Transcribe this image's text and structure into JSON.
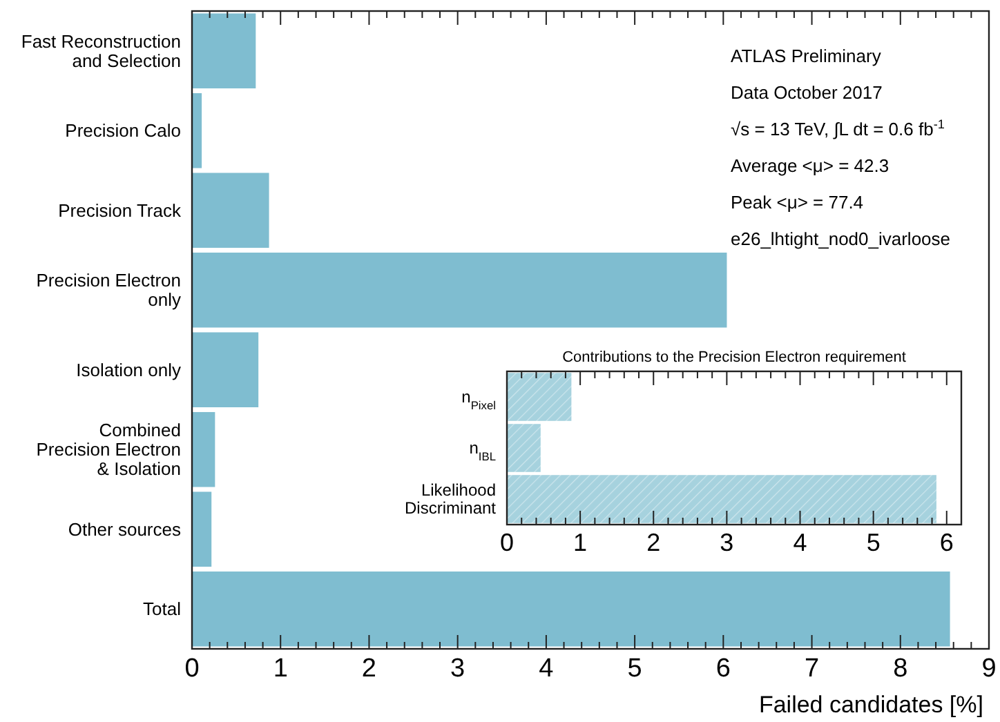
{
  "chart_data": [
    {
      "type": "bar",
      "orientation": "horizontal",
      "xlabel": "Failed candidates [%]",
      "categories": [
        "Fast Reconstruction\nand Selection",
        "Precision Calo",
        "Precision Track",
        "Precision Electron\nonly",
        "Isolation only",
        "Combined\nPrecision Electron\n& Isolation",
        "Other sources",
        "Total"
      ],
      "values": [
        0.72,
        0.11,
        0.87,
        6.04,
        0.75,
        0.26,
        0.22,
        8.56
      ],
      "color": "#7fbdd0",
      "xlim": [
        0,
        9
      ],
      "xticks": [
        0,
        {
          "value": 0.2,
          "label": null
        },
        {
          "value": 0.4,
          "label": null
        },
        {
          "value": 0.6,
          "label": null
        },
        {
          "value": 0.8,
          "label": null
        },
        1,
        {
          "value": 1.2,
          "label": null
        },
        {
          "value": 1.4,
          "label": null
        },
        {
          "value": 1.6,
          "label": null
        },
        {
          "value": 1.8,
          "label": null
        },
        2,
        {
          "value": 2.2,
          "label": null
        },
        {
          "value": 2.4,
          "label": null
        },
        {
          "value": 2.6,
          "label": null
        },
        {
          "value": 2.8,
          "label": null
        },
        3,
        {
          "value": 3.2,
          "label": null
        },
        {
          "value": 3.4,
          "label": null
        },
        {
          "value": 3.6,
          "label": null
        },
        {
          "value": 3.8,
          "label": null
        },
        4,
        {
          "value": 4.2,
          "label": null
        },
        {
          "value": 4.4,
          "label": null
        },
        {
          "value": 4.6,
          "label": null
        },
        {
          "value": 4.8,
          "label": null
        },
        5,
        {
          "value": 5.2,
          "label": null
        },
        {
          "value": 5.4,
          "label": null
        },
        {
          "value": 5.6,
          "label": null
        },
        {
          "value": 5.8,
          "label": null
        },
        6,
        {
          "value": 6.2,
          "label": null
        },
        {
          "value": 6.4,
          "label": null
        },
        {
          "value": 6.6,
          "label": null
        },
        {
          "value": 6.8,
          "label": null
        },
        7,
        {
          "value": 7.2,
          "label": null
        },
        {
          "value": 7.4,
          "label": null
        },
        {
          "value": 7.6,
          "label": null
        },
        {
          "value": 7.8,
          "label": null
        },
        8,
        {
          "value": 8.2,
          "label": null
        },
        {
          "value": 8.4,
          "label": null
        },
        {
          "value": 8.6,
          "label": null
        },
        {
          "value": 8.8,
          "label": null
        },
        9
      ],
      "annotations": [
        "ATLAS Preliminary",
        "Data October 2017",
        "√s = 13 TeV, ∫L dt = 0.6 fb$^{-1}$",
        "Average <μ> = 42.3",
        "Peak <μ> = 77.4",
        "e26_lhtight_nod0_ivarloose"
      ]
    },
    {
      "type": "bar",
      "orientation": "horizontal",
      "title": "Contributions to the Precision Electron requirement",
      "categories": [
        "n$_{Pixel}$",
        "n$_{IBL}$",
        "Likelihood\nDiscriminant"
      ],
      "values": [
        0.88,
        0.46,
        5.86
      ],
      "color": "#a6d2de",
      "xlim": [
        0,
        6.2
      ],
      "xticks": [
        0,
        {
          "value": 0.2,
          "label": null
        },
        {
          "value": 0.4,
          "label": null
        },
        {
          "value": 0.6,
          "label": null
        },
        {
          "value": 0.8,
          "label": null
        },
        1,
        {
          "value": 1.2,
          "label": null
        },
        {
          "value": 1.4,
          "label": null
        },
        {
          "value": 1.6,
          "label": null
        },
        {
          "value": 1.8,
          "label": null
        },
        2,
        {
          "value": 2.2,
          "label": null
        },
        {
          "value": 2.4,
          "label": null
        },
        {
          "value": 2.6,
          "label": null
        },
        {
          "value": 2.8,
          "label": null
        },
        3,
        {
          "value": 3.2,
          "label": null
        },
        {
          "value": 3.4,
          "label": null
        },
        {
          "value": 3.6,
          "label": null
        },
        {
          "value": 3.8,
          "label": null
        },
        4,
        {
          "value": 4.2,
          "label": null
        },
        {
          "value": 4.4,
          "label": null
        },
        {
          "value": 4.6,
          "label": null
        },
        {
          "value": 4.8,
          "label": null
        },
        5,
        {
          "value": 5.2,
          "label": null
        },
        {
          "value": 5.4,
          "label": null
        },
        {
          "value": 5.6,
          "label": null
        },
        {
          "value": 5.8,
          "label": null
        },
        6
      ]
    }
  ]
}
